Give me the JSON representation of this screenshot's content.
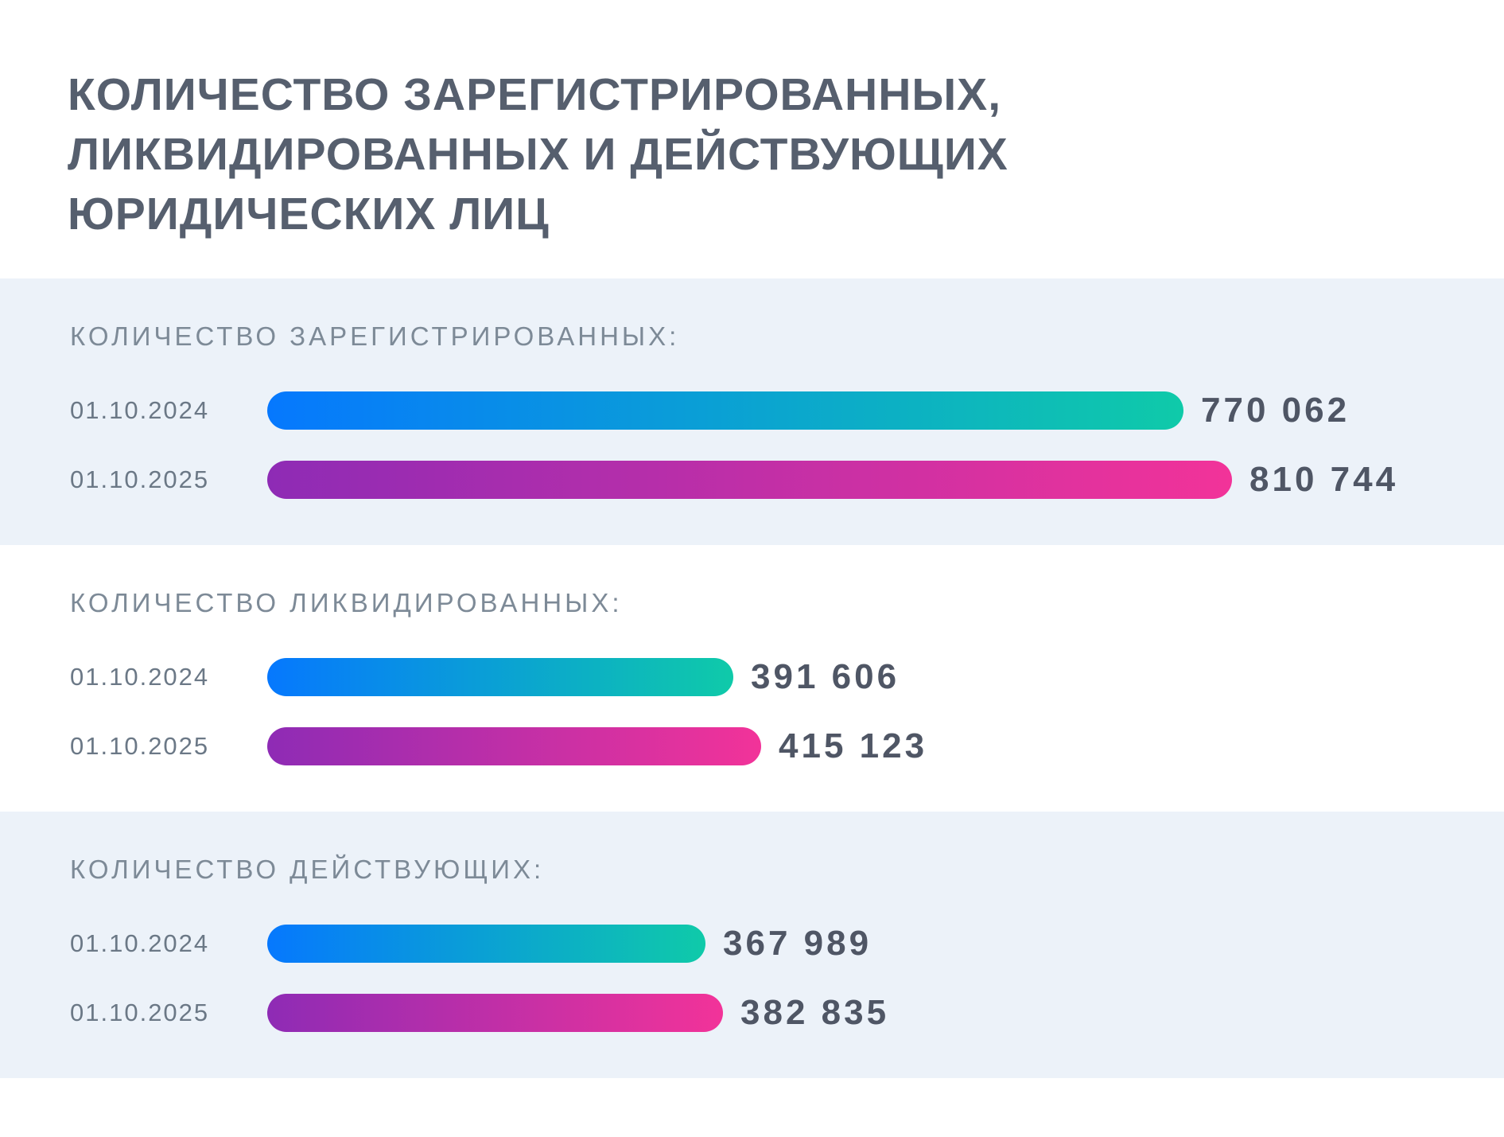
{
  "page": {
    "title_lines": [
      "КОЛИЧЕСТВО ЗАРЕГИСТРИРОВАННЫХ,",
      "ЛИКВИДИРОВАННЫХ И ДЕЙСТВУЮЩИХ",
      "ЮРИДИЧЕСКИХ ЛИЦ"
    ],
    "title": "КОЛИЧЕСТВО ЗАРЕГИСТРИРОВАННЫХ, ЛИКВИДИРОВАННЫХ И ДЕЙСТВУЮЩИХ ЮРИДИЧЕСКИХ ЛИЦ"
  },
  "colors": {
    "section_bg": "#ecf2f9",
    "title": "#565f6e",
    "section_header": "#7d8a97",
    "date_label": "#6b7886",
    "value": "#4f5665",
    "bar_2024_start": "#0678fe",
    "bar_2024_end": "#0fcaa9",
    "bar_2025_start": "#8e2bb5",
    "bar_2025_end": "#f23399"
  },
  "chart_data": {
    "type": "bar",
    "orientation": "horizontal",
    "grid": false,
    "legend_position": "none",
    "value_format": "space-separated thousands",
    "series_style": {
      "01.10.2024": "blue-to-teal gradient pill",
      "01.10.2025": "purple-to-pink gradient pill"
    },
    "sections": [
      {
        "header": "КОЛИЧЕСТВО ЗАРЕГИСТРИРОВАННЫХ:",
        "rows": [
          {
            "label": "01.10.2024",
            "series": "2024",
            "value": 770062,
            "value_text": "770 062"
          },
          {
            "label": "01.10.2025",
            "series": "2025",
            "value": 810744,
            "value_text": "810 744"
          }
        ]
      },
      {
        "header": "КОЛИЧЕСТВО ЛИКВИДИРОВАННЫХ:",
        "rows": [
          {
            "label": "01.10.2024",
            "series": "2024",
            "value": 391606,
            "value_text": "391 606"
          },
          {
            "label": "01.10.2025",
            "series": "2025",
            "value": 415123,
            "value_text": "415 123"
          }
        ]
      },
      {
        "header": "КОЛИЧЕСТВО ДЕЙСТВУЮЩИХ:",
        "rows": [
          {
            "label": "01.10.2024",
            "series": "2024",
            "value": 367989,
            "value_text": "367 989"
          },
          {
            "label": "01.10.2025",
            "series": "2025",
            "value": 382835,
            "value_text": "382 835"
          }
        ]
      }
    ]
  }
}
